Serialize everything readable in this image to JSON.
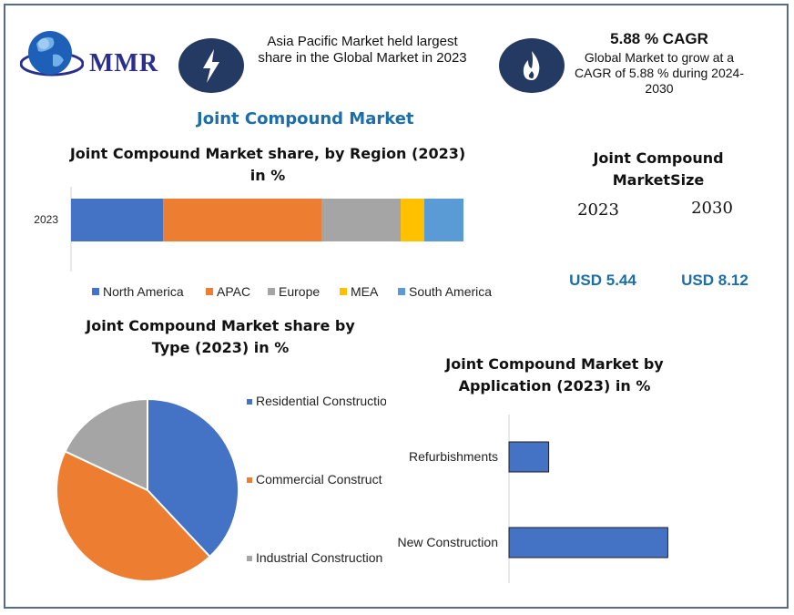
{
  "logo": {
    "text": "MMR"
  },
  "highlight_left": {
    "text": "Asia Pacific Market held largest share in the Global Market in 2023",
    "icon": "lightning-icon"
  },
  "highlight_right": {
    "title": "5.88 % CAGR",
    "text": "Global Market to grow at a CAGR of 5.88 % during 2024-2030",
    "icon": "flame-icon"
  },
  "main_title": "Joint Compound Market",
  "market_size": {
    "title": "Joint Compound MarketSize",
    "years": [
      "2023",
      "2030"
    ],
    "values": [
      "USD 5.44",
      "USD 8.12"
    ]
  },
  "colors": {
    "blue": "#4472c4",
    "orange": "#ed7d31",
    "gray": "#a5a5a5",
    "yellow": "#ffc000",
    "lightblue": "#5b9bd5",
    "navy": "#243a63",
    "title_blue": "#1b6ea8"
  },
  "chart_data": [
    {
      "type": "bar",
      "orientation": "horizontal-stacked",
      "title": "Joint Compound Market share, by Region (2023) in %",
      "categories": [
        "2023"
      ],
      "series": [
        {
          "name": "North America",
          "values": [
            23.5
          ]
        },
        {
          "name": "APAC",
          "values": [
            40.5
          ]
        },
        {
          "name": "Europe",
          "values": [
            20
          ]
        },
        {
          "name": "MEA",
          "values": [
            6
          ]
        },
        {
          "name": "South America",
          "values": [
            10
          ]
        }
      ],
      "legend_position": "bottom"
    },
    {
      "type": "pie",
      "title": "Joint Compound Market share by Type (2023) in %",
      "labels": [
        "Residential Construction",
        "Commercial Construction",
        "Industrial Construction"
      ],
      "legend_display": [
        "Residential Constructio",
        "Commercial Construct",
        "Industrial Construction"
      ],
      "values": [
        38,
        44,
        18
      ],
      "legend_position": "right"
    },
    {
      "type": "bar",
      "orientation": "horizontal",
      "title": "Joint Compound Market by Application (2023) in %",
      "categories": [
        "Refurbishments",
        "New Construction"
      ],
      "values": [
        20,
        80
      ]
    }
  ]
}
